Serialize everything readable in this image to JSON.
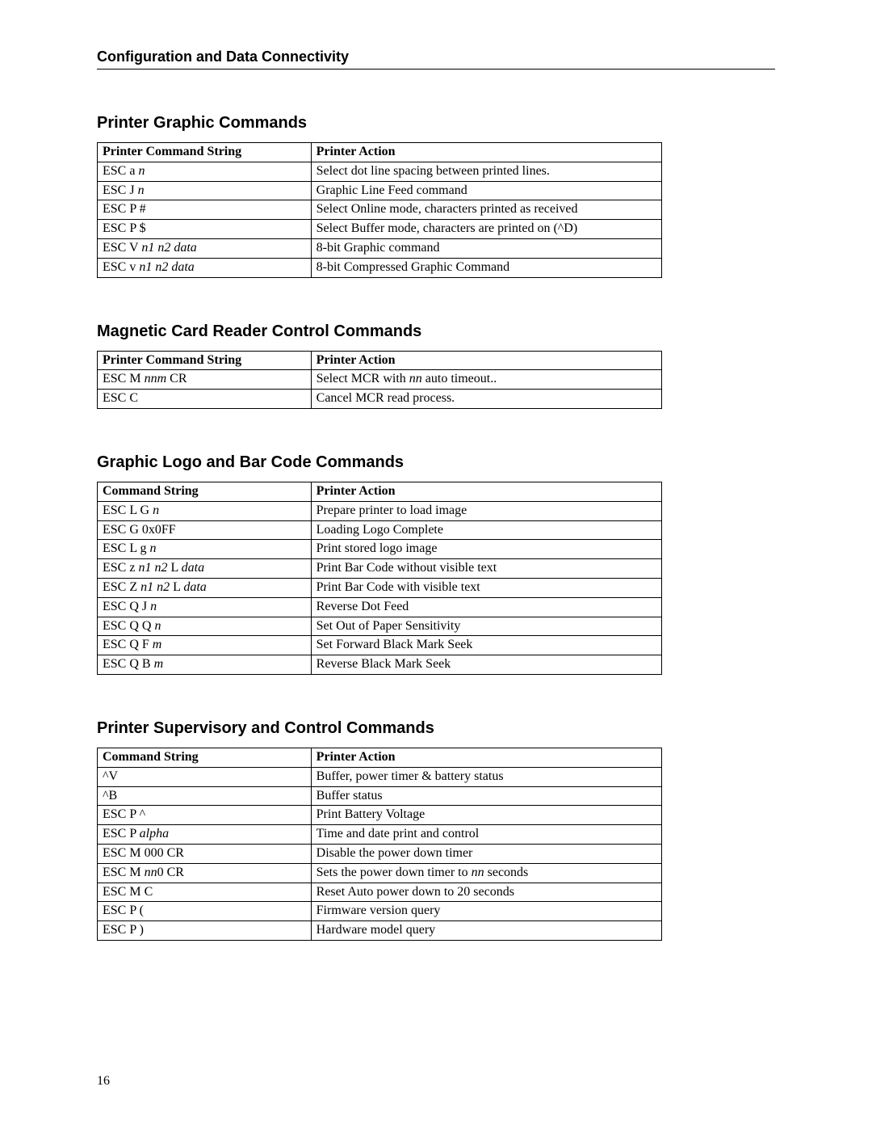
{
  "page": {
    "header": "Configuration and Data Connectivity",
    "page_number": "16"
  },
  "sections": [
    {
      "title": "Printer Graphic Commands",
      "headers": [
        "Printer Command String",
        "Printer Action"
      ],
      "rows": [
        {
          "cmd_html": "ESC a <em class='var'>n</em>",
          "action_html": "Select dot line spacing between printed lines."
        },
        {
          "cmd_html": "ESC J <em class='var'>n</em>",
          "action_html": "Graphic Line Feed command"
        },
        {
          "cmd_html": "ESC P #",
          "action_html": "Select Online mode, characters printed as received"
        },
        {
          "cmd_html": "ESC P $",
          "action_html": "Select Buffer mode, characters are printed on (^D)"
        },
        {
          "cmd_html": "ESC V <em class='var'>n1 n2 data</em>",
          "action_html": "8-bit Graphic command"
        },
        {
          "cmd_html": "ESC v <em class='var'>n1 n2 data</em>",
          "action_html": "8-bit Compressed Graphic Command"
        }
      ]
    },
    {
      "title": "Magnetic Card Reader Control Commands",
      "headers": [
        "Printer Command String",
        "Printer Action"
      ],
      "rows": [
        {
          "cmd_html": "ESC M <em class='var'>nnm</em> CR",
          "action_html": "Select MCR with <em class='var'>nn</em> auto timeout.."
        },
        {
          "cmd_html": "ESC C",
          "action_html": "Cancel MCR read process."
        }
      ]
    },
    {
      "title": "Graphic Logo and Bar Code Commands",
      "headers": [
        "Command String",
        "Printer Action"
      ],
      "rows": [
        {
          "cmd_html": "ESC L G <em class='var'>n</em>",
          "action_html": "Prepare printer to load image"
        },
        {
          "cmd_html": "ESC G 0x0FF",
          "action_html": "Loading Logo Complete"
        },
        {
          "cmd_html": "ESC L g <em class='var'>n</em>",
          "action_html": "Print stored logo image"
        },
        {
          "cmd_html": "ESC z <em class='var'>n1 n2</em> L <em class='var'>data</em>",
          "action_html": "Print Bar Code without visible text"
        },
        {
          "cmd_html": "ESC Z <em class='var'>n1 n2</em> L <em class='var'>data</em>",
          "action_html": "Print Bar Code with visible text"
        },
        {
          "cmd_html": "ESC Q J <em class='var'>n</em>",
          "action_html": "Reverse Dot Feed"
        },
        {
          "cmd_html": "ESC Q Q <em class='var'>n</em>",
          "action_html": "Set Out of Paper Sensitivity"
        },
        {
          "cmd_html": "ESC Q F <em class='var'>m</em>",
          "action_html": "Set Forward Black Mark Seek"
        },
        {
          "cmd_html": "ESC Q B <em class='var'>m</em>",
          "action_html": "Reverse Black Mark Seek"
        }
      ]
    },
    {
      "title": "Printer Supervisory and Control Commands",
      "headers": [
        "Command String",
        "Printer Action"
      ],
      "rows": [
        {
          "cmd_html": "^V",
          "action_html": "Buffer, power timer &amp; battery status"
        },
        {
          "cmd_html": "^B",
          "action_html": "Buffer status"
        },
        {
          "cmd_html": "ESC P ^",
          "action_html": "Print Battery Voltage"
        },
        {
          "cmd_html": "ESC P <em class='var'>alpha</em>",
          "action_html": "Time and date print and control"
        },
        {
          "cmd_html": "ESC M 000 CR",
          "action_html": "Disable the power down timer"
        },
        {
          "cmd_html": "ESC M <em class='var'>nn</em>0 CR",
          "action_html": "Sets the power down timer to <em class='var'>nn</em> seconds"
        },
        {
          "cmd_html": "ESC M C",
          "action_html": "Reset Auto power down to 20 seconds"
        },
        {
          "cmd_html": "ESC P (",
          "action_html": "Firmware version query"
        },
        {
          "cmd_html": "ESC P )",
          "action_html": "Hardware model query"
        }
      ]
    }
  ]
}
